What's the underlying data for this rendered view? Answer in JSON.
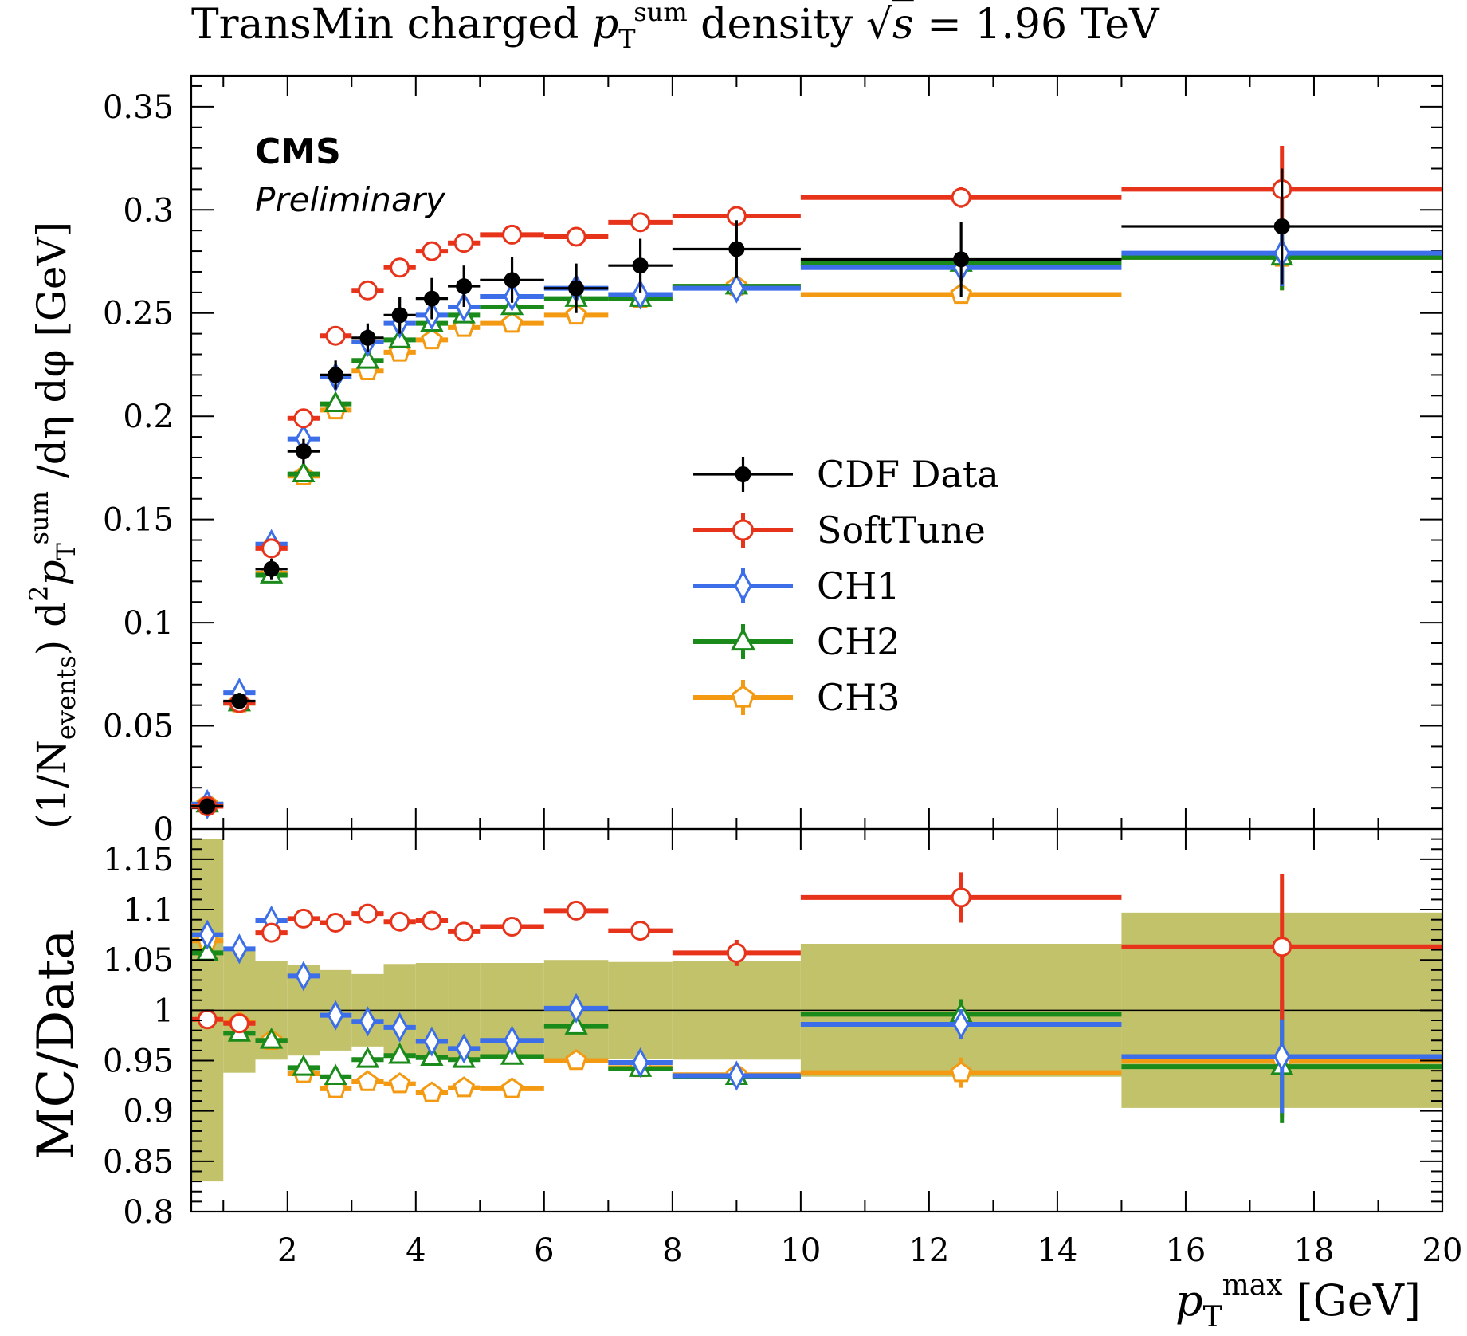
{
  "figure": {
    "title": "TransMin charged p_T^sum density √s = 1.96 TeV",
    "title_parts": {
      "pre": "TransMin charged ",
      "p": "p",
      "sub": "T",
      "sup": "sum",
      "post": " density ",
      "sqrt": "√",
      "s": "s",
      "eq": " = 1.96 TeV"
    },
    "badge": "CMS",
    "badge_sub": "Preliminary"
  },
  "axes": {
    "ylabel_main": "(1/N_events) d²p_T^sum /dη dφ [GeV]",
    "ylabel_main_parts": {
      "a": "(1/N",
      "a_sub": "events",
      "b": ") d",
      "b_sup": "2",
      "c": "p",
      "c_sub": "T",
      "c_sup": "sum",
      "d": " /dη dφ [GeV]"
    },
    "ylabel_ratio": "MC/Data",
    "xlabel": "p_T^max [GeV]",
    "xlabel_parts": {
      "p": "p",
      "sub": "T",
      "sup": "max",
      "unit": " [GeV]"
    },
    "x_ticks": [
      "2",
      "4",
      "6",
      "8",
      "10",
      "12",
      "14",
      "16",
      "18",
      "20"
    ],
    "y_ticks_main": [
      "0",
      "0.05",
      "0.1",
      "0.15",
      "0.2",
      "0.25",
      "0.3",
      "0.35"
    ],
    "y_ticks_ratio": [
      "0.8",
      "0.85",
      "0.9",
      "0.95",
      "1",
      "1.05",
      "1.1",
      "1.15"
    ]
  },
  "legend": [
    {
      "key": "data",
      "label": "CDF Data"
    },
    {
      "key": "soft",
      "label": "SoftTune"
    },
    {
      "key": "ch1",
      "label": "CH1"
    },
    {
      "key": "ch2",
      "label": "CH2"
    },
    {
      "key": "ch3",
      "label": "CH3"
    }
  ],
  "colors": {
    "data": "#000000",
    "soft": "#e8331b",
    "ch1": "#3b6ee8",
    "ch2": "#1a8a1a",
    "ch3": "#f39a12",
    "band": "#c2c26a"
  },
  "chart_data": [
    {
      "type": "scatter",
      "panel": "main",
      "xlim": [
        0.5,
        20
      ],
      "ylim": [
        0,
        0.365
      ],
      "bins": [
        [
          0.5,
          1
        ],
        [
          1,
          1.5
        ],
        [
          1.5,
          2
        ],
        [
          2,
          2.5
        ],
        [
          2.5,
          3
        ],
        [
          3,
          3.5
        ],
        [
          3.5,
          4
        ],
        [
          4,
          4.5
        ],
        [
          4.5,
          5
        ],
        [
          5,
          6
        ],
        [
          6,
          7
        ],
        [
          7,
          8
        ],
        [
          8,
          10
        ],
        [
          10,
          15
        ],
        [
          15,
          20
        ]
      ],
      "series": [
        {
          "key": "data",
          "name": "CDF Data",
          "marker": "filled-circle",
          "values": [
            0.011,
            0.062,
            0.126,
            0.183,
            0.22,
            0.238,
            0.249,
            0.257,
            0.263,
            0.266,
            0.262,
            0.273,
            0.281,
            0.276,
            0.292
          ],
          "errors": [
            0.003,
            0.004,
            0.005,
            0.006,
            0.007,
            0.007,
            0.009,
            0.01,
            0.01,
            0.011,
            0.012,
            0.013,
            0.014,
            0.018,
            0.028
          ]
        },
        {
          "key": "soft",
          "name": "SoftTune",
          "marker": "open-circle",
          "values": [
            0.011,
            0.061,
            0.136,
            0.199,
            0.239,
            0.261,
            0.272,
            0.28,
            0.284,
            0.288,
            0.287,
            0.294,
            0.297,
            0.306,
            0.31
          ],
          "errors": [
            0.001,
            0.001,
            0.001,
            0.001,
            0.001,
            0.001,
            0.001,
            0.001,
            0.001,
            0.001,
            0.001,
            0.002,
            0.002,
            0.005,
            0.021
          ]
        },
        {
          "key": "ch1",
          "name": "CH1",
          "marker": "open-diamond",
          "values": [
            0.012,
            0.066,
            0.138,
            0.189,
            0.219,
            0.236,
            0.245,
            0.249,
            0.253,
            0.258,
            0.262,
            0.259,
            0.262,
            0.272,
            0.279
          ],
          "errors": [
            0.001,
            0.001,
            0.001,
            0.001,
            0.001,
            0.001,
            0.001,
            0.001,
            0.001,
            0.001,
            0.001,
            0.002,
            0.002,
            0.004,
            0.016
          ]
        },
        {
          "key": "ch2",
          "name": "CH2",
          "marker": "open-triangle",
          "values": [
            0.012,
            0.061,
            0.123,
            0.172,
            0.206,
            0.227,
            0.237,
            0.245,
            0.249,
            0.253,
            0.257,
            0.257,
            0.263,
            0.274,
            0.277
          ],
          "errors": [
            0.001,
            0.001,
            0.001,
            0.001,
            0.001,
            0.001,
            0.001,
            0.001,
            0.001,
            0.001,
            0.001,
            0.002,
            0.002,
            0.004,
            0.016
          ]
        },
        {
          "key": "ch3",
          "name": "CH3",
          "marker": "open-pentagon",
          "values": [
            0.012,
            0.061,
            0.124,
            0.171,
            0.203,
            0.222,
            0.231,
            0.237,
            0.243,
            0.245,
            0.249,
            0.257,
            0.263,
            0.259,
            0.277
          ],
          "errors": [
            0.001,
            0.001,
            0.001,
            0.001,
            0.001,
            0.001,
            0.001,
            0.001,
            0.001,
            0.001,
            0.001,
            0.002,
            0.002,
            0.004,
            0.016
          ]
        }
      ]
    },
    {
      "type": "scatter",
      "panel": "ratio",
      "xlim": [
        0.5,
        20
      ],
      "ylim": [
        0.8,
        1.18
      ],
      "bins": [
        [
          0.5,
          1
        ],
        [
          1,
          1.5
        ],
        [
          1.5,
          2
        ],
        [
          2,
          2.5
        ],
        [
          2.5,
          3
        ],
        [
          3,
          3.5
        ],
        [
          3.5,
          4
        ],
        [
          4,
          4.5
        ],
        [
          4.5,
          5
        ],
        [
          5,
          6
        ],
        [
          6,
          7
        ],
        [
          7,
          8
        ],
        [
          8,
          10
        ],
        [
          10,
          15
        ],
        [
          15,
          20
        ]
      ],
      "band_halfwidth": [
        0.17,
        0.062,
        0.049,
        0.045,
        0.04,
        0.036,
        0.046,
        0.047,
        0.047,
        0.047,
        0.05,
        0.048,
        0.049,
        0.066,
        0.097
      ],
      "series": [
        {
          "key": "soft",
          "name": "SoftTune",
          "values": [
            0.991,
            0.987,
            1.077,
            1.091,
            1.087,
            1.096,
            1.088,
            1.089,
            1.078,
            1.083,
            1.099,
            1.079,
            1.057,
            1.112,
            1.063
          ],
          "errors": [
            0.002,
            0.002,
            0.002,
            0.002,
            0.002,
            0.002,
            0.002,
            0.002,
            0.003,
            0.003,
            0.004,
            0.008,
            0.013,
            0.025,
            0.072
          ]
        },
        {
          "key": "ch1",
          "name": "CH1",
          "values": [
            1.075,
            1.061,
            1.089,
            1.034,
            0.995,
            0.989,
            0.983,
            0.969,
            0.962,
            0.97,
            1.002,
            0.948,
            0.935,
            0.986,
            0.954
          ],
          "errors": [
            0.002,
            0.002,
            0.002,
            0.002,
            0.002,
            0.002,
            0.002,
            0.002,
            0.003,
            0.003,
            0.004,
            0.006,
            0.008,
            0.015,
            0.056
          ]
        },
        {
          "key": "ch2",
          "name": "CH2",
          "values": [
            1.057,
            0.977,
            0.97,
            0.943,
            0.934,
            0.951,
            0.955,
            0.953,
            0.951,
            0.954,
            0.984,
            0.942,
            0.934,
            0.996,
            0.944
          ],
          "errors": [
            0.002,
            0.002,
            0.002,
            0.002,
            0.002,
            0.002,
            0.002,
            0.002,
            0.003,
            0.003,
            0.004,
            0.006,
            0.008,
            0.015,
            0.056
          ]
        },
        {
          "key": "ch3",
          "name": "CH3",
          "values": [
            1.069,
            0.988,
            0.97,
            0.937,
            0.922,
            0.929,
            0.927,
            0.918,
            0.923,
            0.922,
            0.95,
            0.943,
            0.936,
            0.938,
            0.95
          ],
          "errors": [
            0.002,
            0.002,
            0.002,
            0.002,
            0.002,
            0.002,
            0.002,
            0.002,
            0.003,
            0.003,
            0.004,
            0.006,
            0.008,
            0.015,
            0.056
          ]
        }
      ]
    }
  ]
}
